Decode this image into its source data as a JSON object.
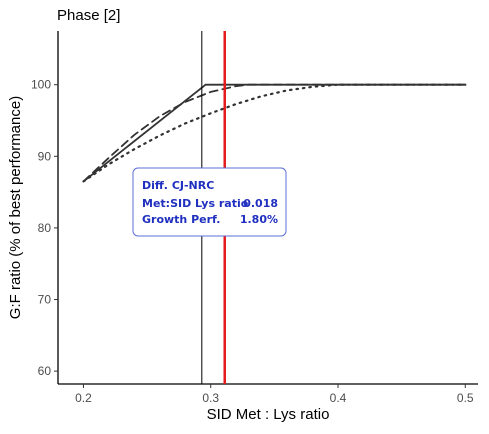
{
  "chart_data": {
    "type": "line",
    "title": "Phase [2]",
    "xlabel": "SID Met : Lys ratio",
    "ylabel": "G:F ratio (% of best performance)",
    "xlim": [
      0.18,
      0.51
    ],
    "ylim": [
      58.2,
      107.5
    ],
    "x_ticks": [
      0.2,
      0.3,
      0.4,
      0.5
    ],
    "x_tick_labels": [
      "0.2",
      "0.3",
      "0.4",
      "0.5"
    ],
    "y_ticks": [
      60,
      70,
      80,
      90,
      100
    ],
    "y_tick_labels": [
      "60",
      "70",
      "80",
      "90",
      "100"
    ],
    "grid": false,
    "series": [
      {
        "style": "solid",
        "x": [
          0.2,
          0.296,
          0.5
        ],
        "y": [
          86.5,
          100,
          100
        ]
      },
      {
        "style": "dashed",
        "x": [
          0.2,
          0.22,
          0.24,
          0.26,
          0.28,
          0.3,
          0.32,
          0.33,
          0.5
        ],
        "y": [
          86.5,
          89.8,
          93.0,
          95.6,
          97.6,
          99.0,
          99.8,
          100,
          100
        ]
      },
      {
        "style": "dotted",
        "x": [
          0.2,
          0.22,
          0.24,
          0.26,
          0.28,
          0.3,
          0.32,
          0.34,
          0.36,
          0.38,
          0.4,
          0.5
        ],
        "y": [
          86.5,
          88.9,
          91.0,
          92.9,
          94.6,
          96.0,
          97.3,
          98.4,
          99.2,
          99.7,
          100,
          100
        ]
      }
    ],
    "vlines": [
      {
        "x": 0.293,
        "color": "#000000",
        "width": 1
      },
      {
        "x": 0.311,
        "color": "#e41a1c",
        "width": 2.5
      }
    ],
    "annotation": {
      "heading": "Diff. CJ-NRC",
      "rows": [
        {
          "label": "Met:SID Lys ratio",
          "value": "0.018"
        },
        {
          "label": "Growth Perf.",
          "value": "1.80%"
        }
      ],
      "text_color": "#1f2fbf",
      "border_color": "#5b6fd6"
    }
  }
}
